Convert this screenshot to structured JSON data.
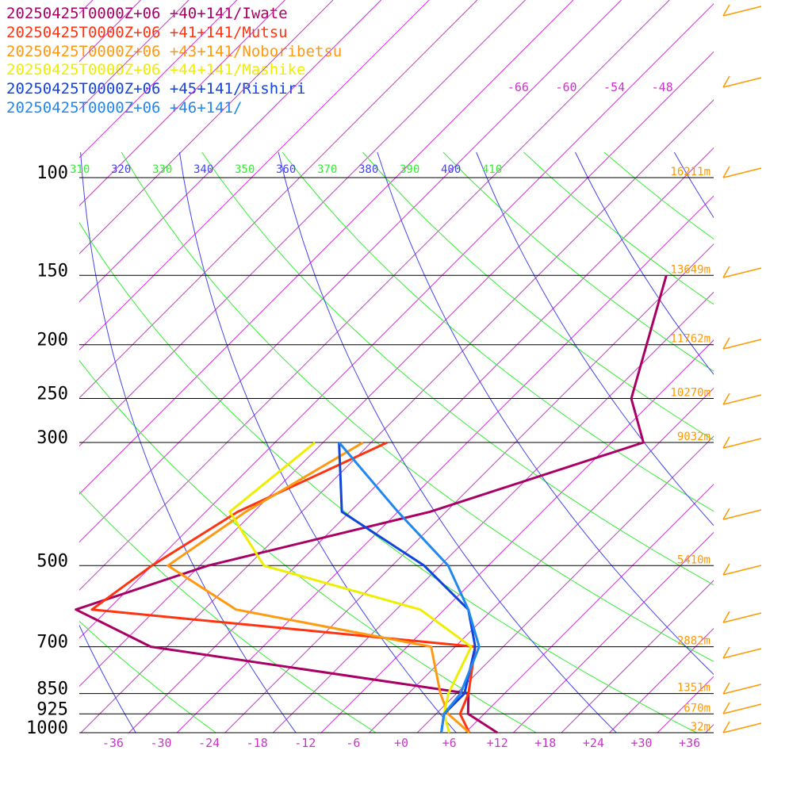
{
  "chart_data": {
    "type": "line",
    "subtype": "skew-t log-p sounding",
    "legend_placement": "top-left",
    "series": [
      {
        "name": "20250425T0000Z+06 +40+141/Iwate",
        "color": "#aa0066",
        "temperature": [
          [
            1000,
            12
          ],
          [
            925,
            6
          ],
          [
            850,
            3.5
          ],
          [
            700,
            -42
          ],
          [
            600,
            -56
          ],
          [
            500,
            -45
          ],
          [
            400,
            -24
          ],
          [
            300,
            -6
          ]
        ],
        "upper_temperature": [
          [
            300,
            -6
          ],
          [
            250,
            -13
          ],
          [
            150,
            -24
          ]
        ]
      },
      {
        "name": "20250425T0000Z+06 +41+141/Mutsu",
        "color": "#ff3311",
        "temperature": [
          [
            1000,
            8.5
          ],
          [
            925,
            5
          ],
          [
            850,
            3.5
          ],
          [
            700,
            -1.5
          ],
          [
            600,
            -54
          ],
          [
            500,
            -52
          ],
          [
            400,
            -48
          ],
          [
            300,
            -38
          ]
        ]
      },
      {
        "name": "20250425T0000Z+06 +43+141/Noboribetsu",
        "color": "#ff9911",
        "temperature": [
          [
            1000,
            8.5
          ],
          [
            925,
            3.5
          ],
          [
            850,
            0
          ],
          [
            700,
            -7
          ],
          [
            600,
            -36
          ],
          [
            500,
            -50
          ],
          [
            400,
            -47
          ],
          [
            300,
            -41
          ]
        ]
      },
      {
        "name": "20250425T0000Z+06 +44+141/Mashike",
        "color": "#eeee00",
        "temperature": [
          [
            1000,
            6
          ],
          [
            925,
            3
          ],
          [
            850,
            1
          ],
          [
            700,
            -2
          ],
          [
            600,
            -13
          ],
          [
            500,
            -38
          ],
          [
            400,
            -49
          ],
          [
            300,
            -47
          ]
        ]
      },
      {
        "name": "20250425T0000Z+06 +45+141/Rishiri",
        "color": "#1144dd",
        "temperature": [
          [
            1000,
            5
          ],
          [
            925,
            3
          ],
          [
            850,
            3
          ],
          [
            700,
            -1.5
          ],
          [
            600,
            -7
          ],
          [
            500,
            -18
          ],
          [
            400,
            -35
          ],
          [
            300,
            -44
          ]
        ]
      },
      {
        "name": "20250425T0000Z+06 +46+141/",
        "color": "#2288ee",
        "temperature": [
          [
            1000,
            5
          ],
          [
            925,
            3
          ],
          [
            850,
            2.5
          ],
          [
            700,
            -1
          ],
          [
            600,
            -7
          ],
          [
            500,
            -15
          ],
          [
            400,
            -28
          ],
          [
            300,
            -44
          ]
        ]
      }
    ],
    "pressure_levels": [
      100,
      150,
      200,
      250,
      300,
      500,
      700,
      850,
      925,
      1000
    ],
    "height_labels": [
      "16211m",
      "13649m",
      "11762m",
      "10270m",
      "9032m",
      "5410m",
      "2882m",
      "1351m",
      "670m",
      "32m"
    ],
    "x_ticks": [
      "-36",
      "-30",
      "-24",
      "-18",
      "-12",
      "-6",
      "+0",
      "+6",
      "+12",
      "+18",
      "+24",
      "+30",
      "+36"
    ],
    "upper_temp_labels": [
      "-66",
      "-60",
      "-54",
      "-48"
    ],
    "theta_labels": [
      "310",
      "320",
      "330",
      "340",
      "350",
      "360",
      "370",
      "380",
      "390",
      "400",
      "410"
    ],
    "ylim": [
      1000,
      100
    ],
    "xlim": [
      -36,
      36
    ],
    "colors": {
      "isotherm": "#cc33cc",
      "dry_adiabat": "#33ee33",
      "moist_adiabat": "#4444ee",
      "isobar": "#000000",
      "height_label": "#ff9900",
      "wind_barb": "#ff9900"
    }
  }
}
